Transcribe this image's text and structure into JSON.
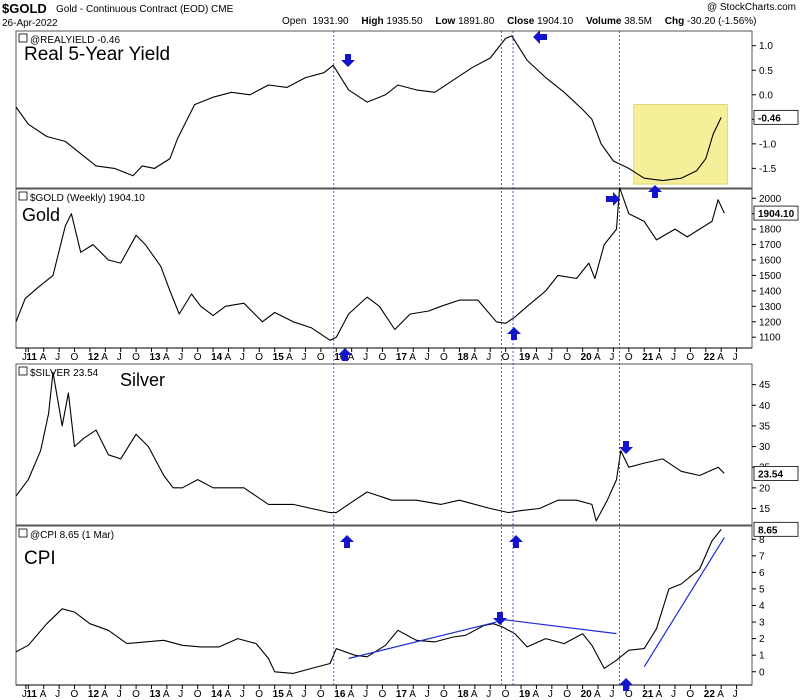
{
  "header": {
    "symbol": "$GOLD",
    "description": "Gold - Continuous Contract (EOD)  CME",
    "date": "26-Apr-2022",
    "credit": "@ StockCharts.com",
    "open_label": "Open",
    "open": "1931.90",
    "high_label": "High",
    "high": "1935.50",
    "low_label": "Low",
    "low": "1891.80",
    "close_label": "Close",
    "close": "1904.10",
    "volume_label": "Volume",
    "volume": "38.5M",
    "chg_label": "Chg",
    "chg": "-30.20 (-1.56%)"
  },
  "x_axis": {
    "labels": [
      {
        "t": 2010.96,
        "text": "J"
      },
      {
        "t": 2011.0,
        "text": "11"
      },
      {
        "t": 2011.25,
        "text": "A"
      },
      {
        "t": 2011.5,
        "text": "J"
      },
      {
        "t": 2011.75,
        "text": "O"
      },
      {
        "t": 2012.0,
        "text": "12"
      },
      {
        "t": 2012.25,
        "text": "A"
      },
      {
        "t": 2012.5,
        "text": "J"
      },
      {
        "t": 2012.75,
        "text": "O"
      },
      {
        "t": 2013.0,
        "text": "13"
      },
      {
        "t": 2013.25,
        "text": "A"
      },
      {
        "t": 2013.5,
        "text": "J"
      },
      {
        "t": 2013.75,
        "text": "O"
      },
      {
        "t": 2014.0,
        "text": "14"
      },
      {
        "t": 2014.25,
        "text": "A"
      },
      {
        "t": 2014.5,
        "text": "J"
      },
      {
        "t": 2014.75,
        "text": "O"
      },
      {
        "t": 2015.0,
        "text": "15"
      },
      {
        "t": 2015.25,
        "text": "A"
      },
      {
        "t": 2015.5,
        "text": "J"
      },
      {
        "t": 2015.75,
        "text": "O"
      },
      {
        "t": 2016.0,
        "text": "16"
      },
      {
        "t": 2016.25,
        "text": "A"
      },
      {
        "t": 2016.5,
        "text": "J"
      },
      {
        "t": 2016.75,
        "text": "O"
      },
      {
        "t": 2017.0,
        "text": "17"
      },
      {
        "t": 2017.25,
        "text": "A"
      },
      {
        "t": 2017.5,
        "text": "J"
      },
      {
        "t": 2017.75,
        "text": "O"
      },
      {
        "t": 2018.0,
        "text": "18"
      },
      {
        "t": 2018.25,
        "text": "A"
      },
      {
        "t": 2018.5,
        "text": "J"
      },
      {
        "t": 2018.75,
        "text": "O"
      },
      {
        "t": 2019.0,
        "text": "19"
      },
      {
        "t": 2019.25,
        "text": "A"
      },
      {
        "t": 2019.5,
        "text": "J"
      },
      {
        "t": 2019.75,
        "text": "O"
      },
      {
        "t": 2020.0,
        "text": "20"
      },
      {
        "t": 2020.25,
        "text": "A"
      },
      {
        "t": 2020.5,
        "text": "J"
      },
      {
        "t": 2020.75,
        "text": "O"
      },
      {
        "t": 2021.0,
        "text": "21"
      },
      {
        "t": 2021.25,
        "text": "A"
      },
      {
        "t": 2021.5,
        "text": "J"
      },
      {
        "t": 2021.75,
        "text": "O"
      },
      {
        "t": 2022.0,
        "text": "22"
      },
      {
        "t": 2022.25,
        "text": "A"
      },
      {
        "t": 2022.5,
        "text": "J"
      }
    ]
  },
  "chart_data": [
    {
      "type": "line",
      "panel": "yield",
      "header_text": "@REALYIELD -0.46",
      "title": "Real 5-Year Yield",
      "last_value_label": "-0.46",
      "ylim": [
        -1.9,
        1.3
      ],
      "y_ticks": [
        -1.5,
        -1.0,
        -0.5,
        0.0,
        0.5,
        1.0
      ],
      "tick_labels": [
        "-1.5",
        "-1.0",
        "-0.5",
        "0.0",
        "0.5",
        "1.0"
      ],
      "x": [
        2010.8,
        2011.0,
        2011.3,
        2011.6,
        2011.85,
        2012.1,
        2012.4,
        2012.7,
        2012.85,
        2013.05,
        2013.3,
        2013.42,
        2013.7,
        2014.0,
        2014.3,
        2014.6,
        2014.9,
        2015.2,
        2015.5,
        2015.8,
        2015.95,
        2016.2,
        2016.5,
        2016.8,
        2017.0,
        2017.3,
        2017.6,
        2017.9,
        2018.2,
        2018.5,
        2018.75,
        2018.85,
        2019.1,
        2019.4,
        2019.7,
        2020.0,
        2020.15,
        2020.3,
        2020.5,
        2020.75,
        2021.0,
        2021.3,
        2021.6,
        2021.85,
        2022.0,
        2022.12,
        2022.25
      ],
      "values": [
        -0.25,
        -0.6,
        -0.85,
        -0.95,
        -1.2,
        -1.45,
        -1.5,
        -1.65,
        -1.45,
        -1.5,
        -1.3,
        -0.9,
        -0.2,
        -0.05,
        0.05,
        0.0,
        0.2,
        0.15,
        0.35,
        0.45,
        0.6,
        0.1,
        -0.15,
        0.0,
        0.2,
        0.1,
        0.05,
        0.3,
        0.55,
        0.75,
        1.15,
        1.2,
        0.7,
        0.35,
        0.05,
        -0.3,
        -0.5,
        -1.0,
        -1.35,
        -1.5,
        -1.7,
        -1.75,
        -1.7,
        -1.55,
        -1.3,
        -0.8,
        -0.46
      ],
      "highlight": {
        "x": [
          2020.83,
          2022.35
        ],
        "y": [
          -1.82,
          -0.2
        ],
        "color": "#f5ef9a"
      }
    },
    {
      "type": "line",
      "panel": "gold",
      "header_text": "$GOLD (Weekly) 1904.10",
      "title": "Gold",
      "last_value_label": "1904.10",
      "ylim": [
        1030,
        2060
      ],
      "y_ticks": [
        1100,
        1200,
        1300,
        1400,
        1500,
        1600,
        1700,
        1800,
        1900,
        2000
      ],
      "tick_labels": [
        "1100",
        "1200",
        "1300",
        "1400",
        "1500",
        "1600",
        "1700",
        "1800",
        "1900",
        "2000"
      ],
      "x": [
        2010.8,
        2010.95,
        2011.15,
        2011.4,
        2011.6,
        2011.7,
        2011.85,
        2012.05,
        2012.3,
        2012.5,
        2012.75,
        2012.9,
        2013.15,
        2013.3,
        2013.45,
        2013.65,
        2013.8,
        2014.0,
        2014.2,
        2014.5,
        2014.8,
        2015.0,
        2015.3,
        2015.6,
        2015.9,
        2016.0,
        2016.2,
        2016.5,
        2016.7,
        2016.95,
        2017.2,
        2017.5,
        2017.7,
        2018.0,
        2018.3,
        2018.6,
        2018.75,
        2018.9,
        2019.1,
        2019.4,
        2019.6,
        2019.9,
        2020.1,
        2020.2,
        2020.35,
        2020.55,
        2020.6,
        2020.75,
        2021.0,
        2021.2,
        2021.5,
        2021.7,
        2021.9,
        2022.1,
        2022.2,
        2022.3
      ],
      "values": [
        1200,
        1350,
        1420,
        1500,
        1820,
        1900,
        1650,
        1700,
        1600,
        1580,
        1760,
        1700,
        1560,
        1400,
        1250,
        1380,
        1300,
        1240,
        1300,
        1320,
        1200,
        1260,
        1200,
        1160,
        1080,
        1100,
        1250,
        1360,
        1300,
        1150,
        1250,
        1270,
        1300,
        1340,
        1340,
        1200,
        1190,
        1230,
        1300,
        1400,
        1500,
        1480,
        1580,
        1480,
        1700,
        1800,
        2070,
        1900,
        1850,
        1730,
        1800,
        1750,
        1800,
        1850,
        1990,
        1904
      ]
    },
    {
      "type": "line",
      "panel": "silver",
      "header_text": "$SILVER 23.54",
      "title": "Silver",
      "last_value_label": "23.54",
      "ylim": [
        11,
        50
      ],
      "y_ticks": [
        15,
        20,
        25,
        30,
        35,
        40,
        45
      ],
      "tick_labels": [
        "15",
        "20",
        "25",
        "30",
        "35",
        "40",
        "45"
      ],
      "x": [
        2010.8,
        2011.0,
        2011.2,
        2011.33,
        2011.4,
        2011.55,
        2011.65,
        2011.75,
        2011.9,
        2012.1,
        2012.3,
        2012.5,
        2012.75,
        2012.95,
        2013.2,
        2013.35,
        2013.5,
        2013.75,
        2014.0,
        2014.5,
        2014.9,
        2015.3,
        2015.6,
        2015.9,
        2016.0,
        2016.3,
        2016.5,
        2016.9,
        2017.3,
        2017.7,
        2018.0,
        2018.5,
        2018.8,
        2019.0,
        2019.3,
        2019.6,
        2019.9,
        2020.15,
        2020.22,
        2020.4,
        2020.55,
        2020.62,
        2020.75,
        2021.0,
        2021.3,
        2021.6,
        2021.9,
        2022.2,
        2022.3
      ],
      "values": [
        18,
        22,
        29,
        38,
        48,
        35,
        43,
        30,
        32,
        34,
        28,
        27,
        33,
        30,
        23,
        20,
        20,
        22,
        20,
        20,
        16,
        16,
        15,
        14,
        14,
        17,
        19,
        17,
        17,
        16,
        17,
        15,
        14,
        14.5,
        15,
        17,
        17,
        16,
        12,
        17,
        22,
        29,
        25,
        26,
        27,
        24,
        23,
        25,
        23.5
      ]
    },
    {
      "type": "line",
      "panel": "cpi",
      "header_text": "@CPI 8.65 (1 Mar)",
      "title": "CPI",
      "last_value_label": "8.65",
      "ylim": [
        -0.8,
        8.8
      ],
      "y_ticks": [
        0,
        1,
        2,
        3,
        4,
        5,
        6,
        7,
        8
      ],
      "tick_labels": [
        "0",
        "1",
        "2",
        "3",
        "4",
        "5",
        "6",
        "7",
        "8"
      ],
      "x": [
        2010.8,
        2011.0,
        2011.3,
        2011.55,
        2011.75,
        2012.0,
        2012.3,
        2012.6,
        2012.9,
        2013.2,
        2013.5,
        2013.8,
        2014.1,
        2014.4,
        2014.7,
        2014.9,
        2015.0,
        2015.3,
        2015.6,
        2015.9,
        2016.0,
        2016.3,
        2016.5,
        2016.8,
        2017.0,
        2017.3,
        2017.6,
        2017.9,
        2018.1,
        2018.4,
        2018.55,
        2018.7,
        2018.9,
        2019.1,
        2019.4,
        2019.7,
        2020.0,
        2020.15,
        2020.35,
        2020.55,
        2020.75,
        2021.0,
        2021.2,
        2021.4,
        2021.6,
        2021.9,
        2022.1,
        2022.25
      ],
      "values": [
        1.2,
        1.6,
        2.9,
        3.8,
        3.6,
        2.9,
        2.5,
        1.7,
        1.8,
        1.9,
        1.6,
        1.5,
        1.5,
        2.0,
        1.7,
        0.8,
        0.0,
        -0.1,
        0.2,
        0.5,
        1.4,
        1.0,
        0.9,
        1.6,
        2.5,
        1.9,
        1.8,
        2.1,
        2.2,
        2.8,
        2.9,
        2.7,
        2.3,
        1.5,
        2.0,
        1.7,
        2.3,
        1.6,
        0.2,
        0.7,
        1.3,
        1.4,
        2.6,
        5.0,
        5.3,
        6.2,
        7.9,
        8.6
      ],
      "trendlines": [
        {
          "x": [
            2016.2,
            2018.6
          ],
          "y": [
            0.8,
            3.0
          ],
          "color": "#1d2bd6"
        },
        {
          "x": [
            2018.6,
            2020.55
          ],
          "y": [
            3.2,
            2.3
          ],
          "color": "#1d2bd6"
        },
        {
          "x": [
            2021.0,
            2022.3
          ],
          "y": [
            0.3,
            8.1
          ],
          "color": "#1d2bd6"
        }
      ]
    }
  ],
  "vlines_x": [
    2015.96,
    2018.68,
    2018.87,
    2020.6
  ],
  "arrow_color": "#1414cc"
}
